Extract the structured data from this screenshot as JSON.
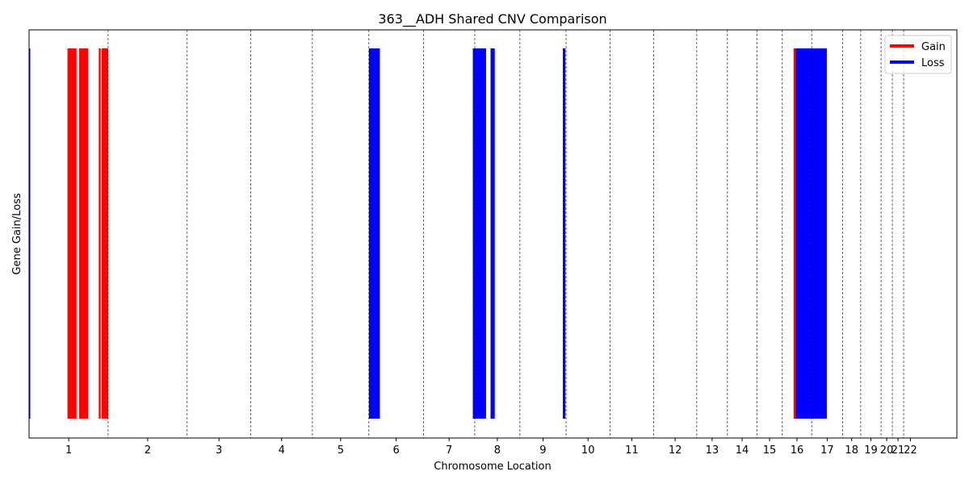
{
  "chart_data": {
    "type": "bar",
    "title": "363__ADH Shared CNV Comparison",
    "xlabel": "Chromosome Location",
    "ylabel": "Gene Gain/Loss",
    "xlim": [
      0,
      2875
    ],
    "grid": "vertical dashed lines at chromosome boundaries",
    "legend_placement": "top-right",
    "legend": [
      {
        "label": "Gain",
        "color": "#ff0000"
      },
      {
        "label": "Loss",
        "color": "#0000ff"
      }
    ],
    "chromosomes": [
      {
        "label": "1",
        "start": 0,
        "end": 245
      },
      {
        "label": "2",
        "start": 245,
        "end": 490
      },
      {
        "label": "3",
        "start": 490,
        "end": 687
      },
      {
        "label": "4",
        "start": 687,
        "end": 878
      },
      {
        "label": "5",
        "start": 878,
        "end": 1053
      },
      {
        "label": "6",
        "start": 1053,
        "end": 1222
      },
      {
        "label": "7",
        "start": 1222,
        "end": 1381
      },
      {
        "label": "8",
        "start": 1381,
        "end": 1521
      },
      {
        "label": "9",
        "start": 1521,
        "end": 1664
      },
      {
        "label": "10",
        "start": 1664,
        "end": 1800
      },
      {
        "label": "11",
        "start": 1800,
        "end": 1935
      },
      {
        "label": "12",
        "start": 1935,
        "end": 2069
      },
      {
        "label": "13",
        "start": 2069,
        "end": 2164
      },
      {
        "label": "14",
        "start": 2164,
        "end": 2255
      },
      {
        "label": "15",
        "start": 2255,
        "end": 2334
      },
      {
        "label": "16",
        "start": 2334,
        "end": 2425
      },
      {
        "label": "17",
        "start": 2425,
        "end": 2521
      },
      {
        "label": "18",
        "start": 2521,
        "end": 2577
      },
      {
        "label": "19",
        "start": 2577,
        "end": 2640
      },
      {
        "label": "20",
        "start": 2640,
        "end": 2675
      },
      {
        "label": "21",
        "start": 2675,
        "end": 2710
      },
      {
        "label": "22",
        "start": 2710,
        "end": 2875
      }
    ],
    "segments": [
      {
        "type": "Loss",
        "start": 0,
        "end": 3
      },
      {
        "type": "Gain",
        "start": 119,
        "end": 147
      },
      {
        "type": "Gain",
        "start": 155,
        "end": 183
      },
      {
        "type": "Gain",
        "start": 216,
        "end": 222
      },
      {
        "type": "Gain",
        "start": 225,
        "end": 245
      },
      {
        "type": "Loss",
        "start": 1053,
        "end": 1087
      },
      {
        "type": "Loss",
        "start": 1375,
        "end": 1416
      },
      {
        "type": "Loss",
        "start": 1430,
        "end": 1443
      },
      {
        "type": "Loss",
        "start": 1654,
        "end": 1662
      },
      {
        "type": "Gain",
        "start": 2369,
        "end": 2375
      },
      {
        "type": "Loss",
        "start": 2375,
        "end": 2472
      }
    ]
  }
}
